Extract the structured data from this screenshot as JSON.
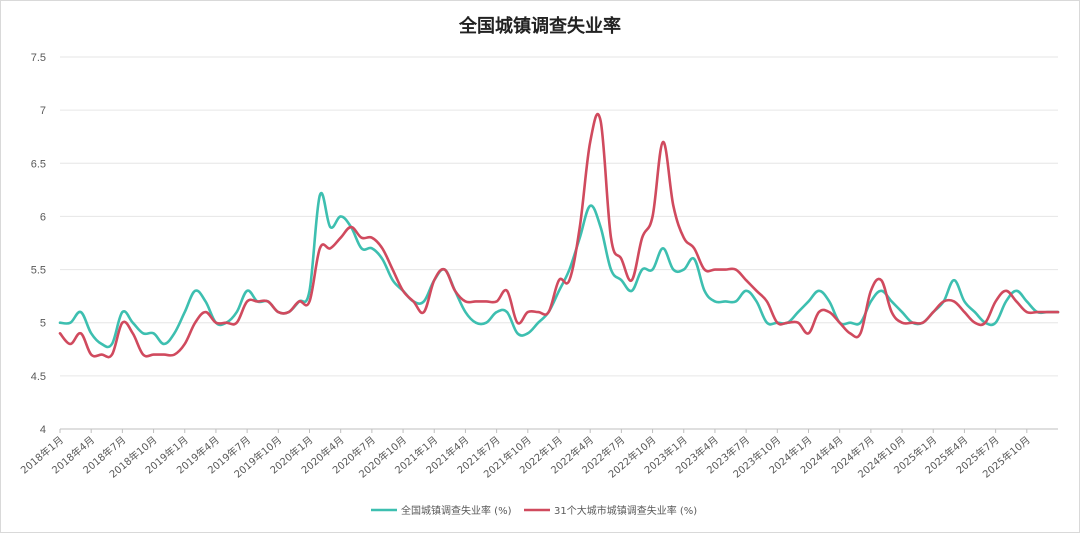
{
  "chart_data": {
    "type": "line",
    "title": "全国城镇调查失业率",
    "ylim": [
      4,
      7.5
    ],
    "yticks": [
      "4",
      "4.5",
      "5",
      "5.5",
      "6",
      "6.5",
      "7",
      "7.5"
    ],
    "x_tick_labels": [
      "2018年1月",
      "2018年4月",
      "2018年7月",
      "2018年10月",
      "2019年1月",
      "2019年4月",
      "2019年7月",
      "2019年10月",
      "2020年1月",
      "2020年4月",
      "2020年7月",
      "2020年10月",
      "2021年1月",
      "2021年4月",
      "2021年7月",
      "2021年10月",
      "2022年1月",
      "2022年4月",
      "2022年7月",
      "2022年10月",
      "2023年1月",
      "2023年4月",
      "2023年7月",
      "2023年10月",
      "2024年1月",
      "2024年4月",
      "2024年7月",
      "2024年10月",
      "2025年1月",
      "2025年4月",
      "2025年7月",
      "2025年10月"
    ],
    "x_start": "2018-01",
    "x_end": "2025-11",
    "grid": "horizontal",
    "legend_position": "bottom",
    "series": [
      {
        "name": "全国城镇调查失业率 (%)",
        "color": "#3dbfb0",
        "values": [
          5.0,
          5.0,
          5.1,
          4.9,
          4.8,
          4.8,
          5.1,
          5.0,
          4.9,
          4.9,
          4.8,
          4.9,
          5.1,
          5.3,
          5.2,
          5.0,
          5.0,
          5.1,
          5.3,
          5.2,
          5.2,
          5.1,
          5.1,
          5.2,
          5.3,
          6.2,
          5.9,
          6.0,
          5.9,
          5.7,
          5.7,
          5.6,
          5.4,
          5.3,
          5.2,
          5.2,
          5.4,
          5.5,
          5.3,
          5.1,
          5.0,
          5.0,
          5.1,
          5.1,
          4.9,
          4.9,
          5.0,
          5.1,
          5.3,
          5.5,
          5.8,
          6.1,
          5.9,
          5.5,
          5.4,
          5.3,
          5.5,
          5.5,
          5.7,
          5.5,
          5.5,
          5.6,
          5.3,
          5.2,
          5.2,
          5.2,
          5.3,
          5.2,
          5.0,
          5.0,
          5.0,
          5.1,
          5.2,
          5.3,
          5.2,
          5.0,
          5.0,
          5.0,
          5.2,
          5.3,
          5.2,
          5.1,
          5.0,
          5.0,
          5.1,
          5.2,
          5.4,
          5.2,
          5.1,
          5.0,
          5.0,
          5.2,
          5.3,
          5.2,
          5.1,
          5.1,
          5.1
        ]
      },
      {
        "name": "31个大城市城镇调查失业率 (%)",
        "color": "#d04a5e",
        "values": [
          4.9,
          4.8,
          4.9,
          4.7,
          4.7,
          4.7,
          5.0,
          4.9,
          4.7,
          4.7,
          4.7,
          4.7,
          4.8,
          5.0,
          5.1,
          5.0,
          5.0,
          5.0,
          5.2,
          5.2,
          5.2,
          5.1,
          5.1,
          5.2,
          5.2,
          5.7,
          5.7,
          5.8,
          5.9,
          5.8,
          5.8,
          5.7,
          5.5,
          5.3,
          5.2,
          5.1,
          5.4,
          5.5,
          5.3,
          5.2,
          5.2,
          5.2,
          5.2,
          5.3,
          5.0,
          5.1,
          5.1,
          5.1,
          5.4,
          5.4,
          5.9,
          6.7,
          6.9,
          5.8,
          5.6,
          5.4,
          5.8,
          6.0,
          6.7,
          6.1,
          5.8,
          5.7,
          5.5,
          5.5,
          5.5,
          5.5,
          5.4,
          5.3,
          5.2,
          5.0,
          5.0,
          5.0,
          4.9,
          5.1,
          5.1,
          5.0,
          4.9,
          4.9,
          5.3,
          5.4,
          5.1,
          5.0,
          5.0,
          5.0,
          5.1,
          5.2,
          5.2,
          5.1,
          5.0,
          5.0,
          5.2,
          5.3,
          5.2,
          5.1,
          5.1,
          5.1,
          5.1
        ]
      }
    ]
  }
}
